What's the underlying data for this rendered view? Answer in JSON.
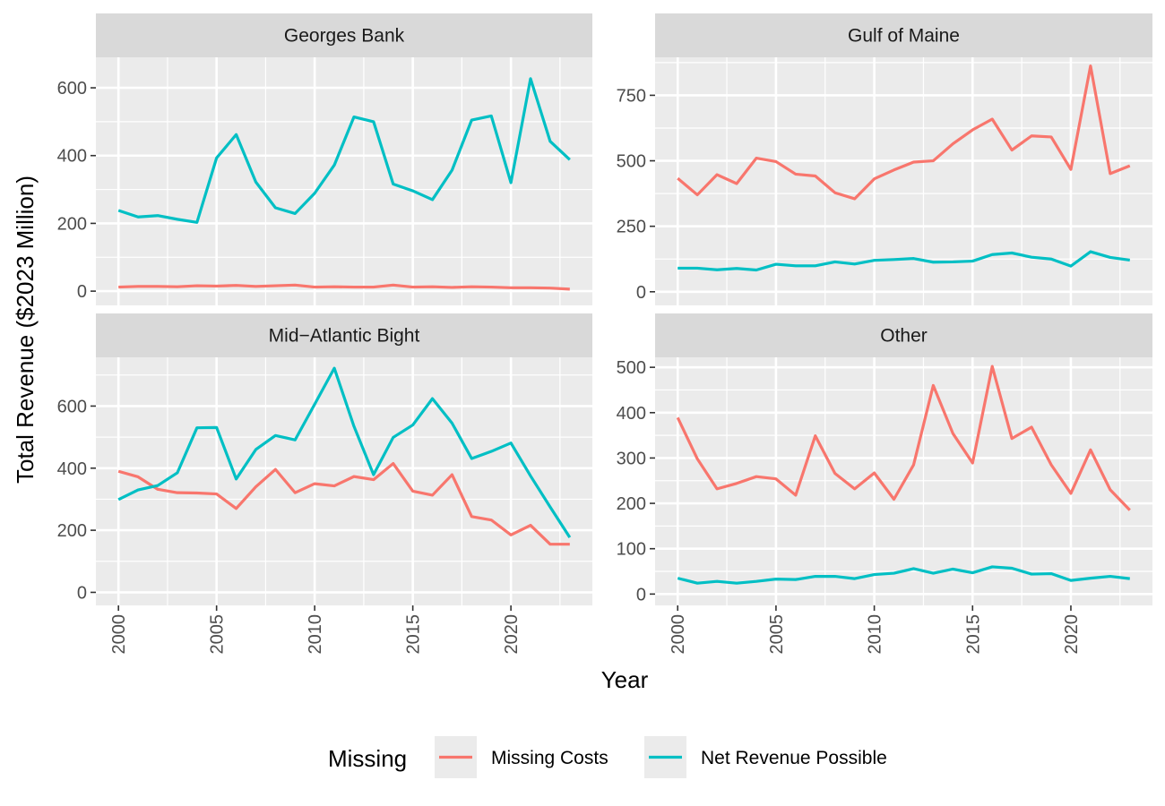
{
  "chart_data": {
    "type": "line",
    "xlabel": "Year",
    "ylabel": "Total Revenue ($2023 Million)",
    "legend": {
      "title": "Missing",
      "placement": "bottom",
      "entries": [
        {
          "name": "Missing Costs",
          "color": "#F8766D"
        },
        {
          "name": "Net Revenue Possible",
          "color": "#00BFC4"
        }
      ]
    },
    "x": [
      2000,
      2001,
      2002,
      2003,
      2004,
      2005,
      2006,
      2007,
      2008,
      2009,
      2010,
      2011,
      2012,
      2013,
      2014,
      2015,
      2016,
      2017,
      2018,
      2019,
      2020,
      2021,
      2022,
      2023
    ],
    "x_ticks": [
      2000,
      2005,
      2010,
      2015,
      2020
    ],
    "x_tick_labels": [
      "2000",
      "2005",
      "2010",
      "2015",
      "2020"
    ],
    "facets": [
      {
        "title": "Georges Bank",
        "ylim": [
          -42,
          690
        ],
        "y_ticks": [
          0,
          200,
          400,
          600
        ],
        "y_tick_labels": [
          "0",
          "200",
          "400",
          "600"
        ],
        "series": [
          {
            "name": "Missing Costs",
            "values": [
              12,
              14,
              14,
              13,
              16,
              15,
              17,
              14,
              16,
              18,
              12,
              13,
              12,
              12,
              18,
              12,
              13,
              11,
              13,
              12,
              10,
              10,
              9,
              6
            ]
          },
          {
            "name": "Net Revenue Possible",
            "values": [
              238,
              219,
              223,
              212,
              203,
              393,
              462,
              322,
              246,
              229,
              289,
              372,
              514,
              500,
              316,
              296,
              270,
              357,
              505,
              517,
              320,
              627,
              442,
              388
            ]
          }
        ]
      },
      {
        "title": "Gulf of Maine",
        "ylim": [
          -52,
          895
        ],
        "y_ticks": [
          0,
          250,
          500,
          750
        ],
        "y_tick_labels": [
          "0",
          "250",
          "500",
          "750"
        ],
        "series": [
          {
            "name": "Missing Costs",
            "values": [
              433,
              370,
              447,
              413,
              510,
              497,
              449,
              442,
              378,
              355,
              431,
              465,
              495,
              500,
              565,
              618,
              659,
              541,
              595,
              591,
              467,
              862,
              451,
              481
            ]
          },
          {
            "name": "Net Revenue Possible",
            "values": [
              90,
              90,
              84,
              89,
              83,
              105,
              99,
              99,
              114,
              106,
              120,
              123,
              127,
              113,
              114,
              117,
              142,
              148,
              132,
              125,
              98,
              153,
              131,
              121
            ]
          }
        ]
      },
      {
        "title": "Mid−Atlantic Bight",
        "ylim": [
          -42,
          757
        ],
        "y_ticks": [
          0,
          200,
          400,
          600
        ],
        "y_tick_labels": [
          "0",
          "200",
          "400",
          "600"
        ],
        "series": [
          {
            "name": "Missing Costs",
            "values": [
              390,
              372,
              332,
              321,
              320,
              317,
              270,
              340,
              396,
              321,
              350,
              343,
              373,
              363,
              415,
              326,
              313,
              379,
              244,
              233,
              185,
              216,
              155,
              155
            ]
          },
          {
            "name": "Net Revenue Possible",
            "values": [
              299,
              330,
              344,
              385,
              530,
              531,
              365,
              460,
              505,
              491,
              606,
              722,
              535,
              379,
              499,
              539,
              624,
              545,
              431,
              454,
              481,
              375,
              275,
              177
            ]
          }
        ]
      },
      {
        "title": "Other",
        "ylim": [
          -25,
          522
        ],
        "y_ticks": [
          0,
          100,
          200,
          300,
          400,
          500
        ],
        "y_tick_labels": [
          "0",
          "100",
          "200",
          "300",
          "400",
          "500"
        ],
        "series": [
          {
            "name": "Missing Costs",
            "values": [
              389,
              298,
              232,
              244,
              259,
              254,
              218,
              349,
              266,
              232,
              267,
              209,
              285,
              460,
              354,
              289,
              502,
              343,
              368,
              285,
              222,
              318,
              230,
              185
            ]
          },
          {
            "name": "Net Revenue Possible",
            "values": [
              35,
              24,
              28,
              24,
              28,
              33,
              32,
              39,
              39,
              34,
              43,
              46,
              56,
              46,
              55,
              47,
              60,
              57,
              44,
              45,
              30,
              35,
              39,
              34
            ]
          }
        ]
      }
    ]
  }
}
